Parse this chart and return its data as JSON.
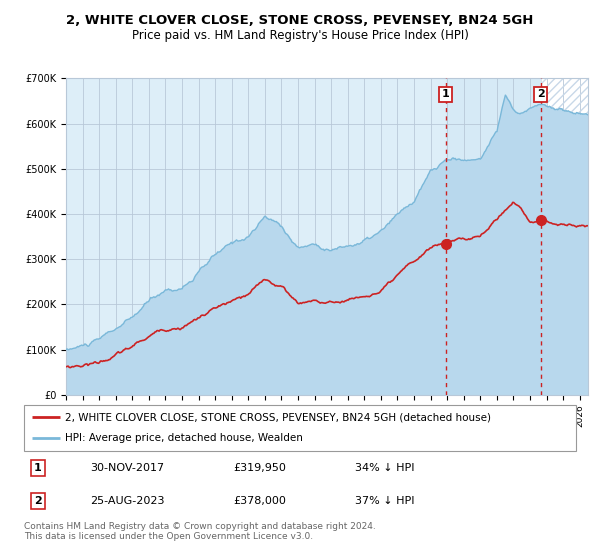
{
  "title": "2, WHITE CLOVER CLOSE, STONE CROSS, PEVENSEY, BN24 5GH",
  "subtitle": "Price paid vs. HM Land Registry's House Price Index (HPI)",
  "ylim": [
    0,
    700000
  ],
  "yticks": [
    0,
    100000,
    200000,
    300000,
    400000,
    500000,
    600000,
    700000
  ],
  "ytick_labels": [
    "£0",
    "£100K",
    "£200K",
    "£300K",
    "£400K",
    "£500K",
    "£600K",
    "£700K"
  ],
  "xstart": 1995.0,
  "xend": 2026.5,
  "hpi_color": "#7ab8d9",
  "hpi_fill_color": "#b8d8ed",
  "price_color": "#cc2222",
  "bg_color": "#ddeef8",
  "hatch_bg_color": "#ffffff",
  "hatch_line_color": "#c8d8e8",
  "grid_color": "#b8c8d8",
  "sale1_date": 2017.917,
  "sale1_price": 319950,
  "sale2_date": 2023.646,
  "sale2_price": 378000,
  "legend_line1": "2, WHITE CLOVER CLOSE, STONE CROSS, PEVENSEY, BN24 5GH (detached house)",
  "legend_line2": "HPI: Average price, detached house, Wealden",
  "table_row1_num": "1",
  "table_row1_date": "30-NOV-2017",
  "table_row1_price": "£319,950",
  "table_row1_hpi": "34% ↓ HPI",
  "table_row2_num": "2",
  "table_row2_date": "25-AUG-2023",
  "table_row2_price": "£378,000",
  "table_row2_hpi": "37% ↓ HPI",
  "footer": "Contains HM Land Registry data © Crown copyright and database right 2024.\nThis data is licensed under the Open Government Licence v3.0.",
  "title_fontsize": 9.5,
  "subtitle_fontsize": 8.5,
  "tick_fontsize": 7,
  "legend_fontsize": 7.5,
  "table_fontsize": 8,
  "footer_fontsize": 6.5
}
